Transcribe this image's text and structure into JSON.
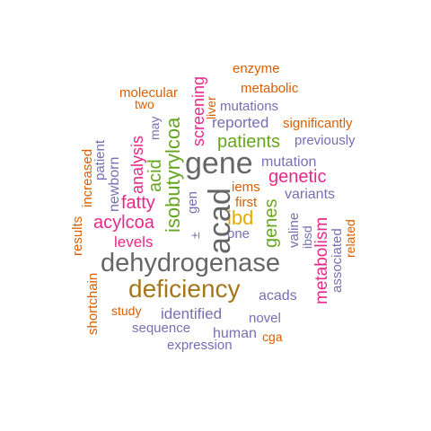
{
  "words": {
    "enzyme": "enzyme",
    "molecular": "molecular",
    "metabolic": "metabolic",
    "two": "two",
    "mutations": "mutations",
    "liver": "liver",
    "may": "may",
    "screening": "screening",
    "reported": "reported",
    "significantly": "significantly",
    "previously": "previously",
    "increased": "increased",
    "patient": "patient",
    "analysis": "analysis",
    "acid": "acid",
    "isobutyrylcoa": "isobutyrylcoa",
    "gene": "gene",
    "patients": "patients",
    "mutation": "mutation",
    "newborn": "newborn",
    "genetic": "genetic",
    "iems": "iems",
    "gen": "gen",
    "acad": "acad",
    "variants": "variants",
    "fatty": "fatty",
    "first": "first",
    "results": "results",
    "acylcoa": "acylcoa",
    "plus_minus": "±",
    "ibd": "ibd",
    "genes": "genes",
    "valine": "valine",
    "ibsd": "ibsd",
    "metabolism": "metabolism",
    "associated": "associated",
    "related": "related",
    "levels": "levels",
    "one": "one",
    "shortchain": "shortchain",
    "dehydrogenase": "dehydrogenase",
    "deficiency": "deficiency",
    "acads": "acads",
    "study": "study",
    "identified": "identified",
    "novel": "novel",
    "sequence": "sequence",
    "human": "human",
    "cga": "cga",
    "expression": "expression"
  },
  "colors": {
    "orange": "#d95f02",
    "pink": "#e7298a",
    "purple": "#7570b3",
    "green": "#66a61e",
    "gold": "#e6ab02",
    "brown": "#a6761d",
    "gray": "#666666"
  }
}
